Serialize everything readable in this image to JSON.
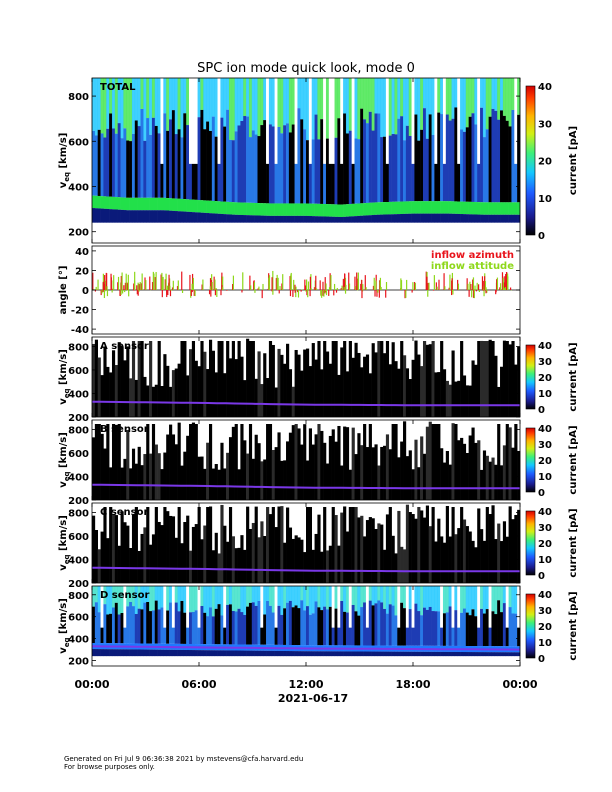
{
  "title": "SPC ion mode quick look, mode 0",
  "date_label": "2021-06-17",
  "footer": {
    "line1": "Generated on Fri Jul  9 06:36:38 2021 by mstevens@cfa.harvard.edu",
    "line2": "For browse purposes only."
  },
  "colors": {
    "azimuth": "#e8141c",
    "attitude": "#8ed81a",
    "bulk_green": "#22e04a",
    "dark_blue": "#0a1a7a",
    "trace_purple": "#7a38e8"
  },
  "chart_data": [
    {
      "type": "heatmap",
      "panel_label": "TOTAL",
      "ylabel": "v_eq [km/s]",
      "ylim": [
        150,
        880
      ],
      "yticks": [
        200,
        400,
        600,
        800
      ],
      "colorbar": {
        "label": "current [pA]",
        "range": [
          0,
          40
        ],
        "ticks": [
          0,
          10,
          20,
          30,
          40
        ]
      },
      "bulk_speed_trace": {
        "x_hours": [
          0,
          2,
          4,
          6,
          8,
          10,
          12,
          14,
          16,
          18,
          20,
          22,
          24
        ],
        "v_kms": [
          330,
          320,
          320,
          310,
          300,
          295,
          295,
          290,
          300,
          305,
          305,
          300,
          300
        ]
      }
    },
    {
      "type": "line",
      "ylabel": "angle [°]",
      "ylim": [
        -45,
        45
      ],
      "yticks": [
        -40,
        -20,
        0,
        20,
        40
      ],
      "series": [
        {
          "name": "inflow azimuth",
          "color": "#e8141c"
        },
        {
          "name": "inflow attitude",
          "color": "#8ed81a"
        }
      ]
    },
    {
      "type": "heatmap",
      "panel_label": "A sensor",
      "ylabel": "v_eq [km/s]",
      "ylim": [
        200,
        880
      ],
      "yticks": [
        200,
        400,
        600,
        800
      ],
      "colorbar": {
        "label": "current [pA]",
        "range": [
          0,
          40
        ],
        "ticks": [
          0,
          10,
          20,
          30,
          40
        ]
      },
      "bulk_speed_trace": {
        "x_hours": [
          0,
          6,
          12,
          18,
          24
        ],
        "v_kms": [
          330,
          320,
          305,
          300,
          300
        ]
      }
    },
    {
      "type": "heatmap",
      "panel_label": "B sensor",
      "ylabel": "v_eq [km/s]",
      "ylim": [
        200,
        880
      ],
      "yticks": [
        200,
        400,
        600,
        800
      ],
      "colorbar": {
        "label": "current [pA]",
        "range": [
          0,
          40
        ],
        "ticks": [
          0,
          10,
          20,
          30,
          40
        ]
      },
      "bulk_speed_trace": {
        "x_hours": [
          0,
          6,
          12,
          18,
          24
        ],
        "v_kms": [
          330,
          320,
          305,
          300,
          300
        ]
      }
    },
    {
      "type": "heatmap",
      "panel_label": "C sensor",
      "ylabel": "v_eq [km/s]",
      "ylim": [
        200,
        880
      ],
      "yticks": [
        200,
        400,
        600,
        800
      ],
      "colorbar": {
        "label": "current [pA]",
        "range": [
          0,
          40
        ],
        "ticks": [
          0,
          10,
          20,
          30,
          40
        ]
      },
      "bulk_speed_trace": {
        "x_hours": [
          0,
          6,
          12,
          18,
          24
        ],
        "v_kms": [
          330,
          320,
          305,
          300,
          300
        ]
      }
    },
    {
      "type": "heatmap",
      "panel_label": "D sensor",
      "ylabel": "v_eq [km/s]",
      "ylim": [
        150,
        880
      ],
      "yticks": [
        200,
        400,
        600,
        800
      ],
      "colorbar": {
        "label": "current [pA]",
        "range": [
          0,
          40
        ],
        "ticks": [
          0,
          10,
          20,
          30,
          40
        ]
      },
      "bulk_speed_trace": {
        "x_hours": [
          0,
          6,
          12,
          18,
          24
        ],
        "v_kms": [
          330,
          320,
          310,
          305,
          300
        ]
      }
    }
  ],
  "x_axis": {
    "range_hours": [
      0,
      24
    ],
    "tick_hours": [
      0,
      6,
      12,
      18,
      24
    ],
    "tick_labels": [
      "00:00",
      "06:00",
      "12:00",
      "18:00",
      "00:00"
    ]
  }
}
